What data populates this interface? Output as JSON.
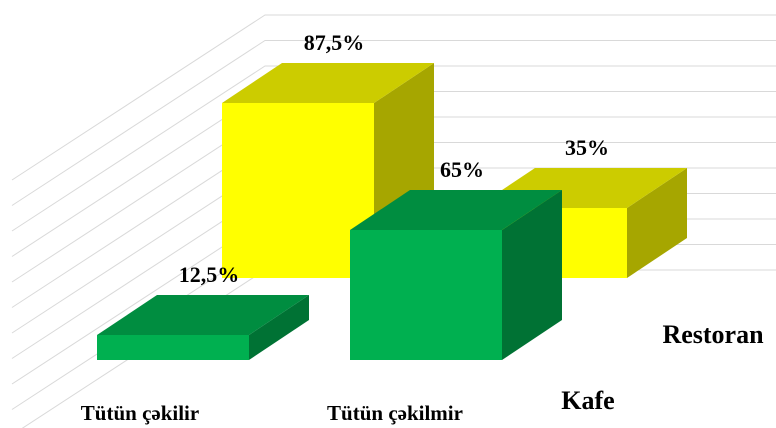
{
  "chart_data": {
    "type": "bar3d",
    "categories": [
      "Tütün çəkilir",
      "Tütün çəkilmir"
    ],
    "series": [
      {
        "name": "Kafe",
        "color": "#00b050",
        "values": [
          12.5,
          65
        ],
        "value_labels": [
          "12,5%",
          "65%"
        ]
      },
      {
        "name": "Restoran",
        "color": "#ffff00",
        "values": [
          87.5,
          35
        ],
        "value_labels": [
          "87,5%",
          "35%"
        ]
      }
    ],
    "ylim": [
      0,
      100
    ],
    "grid": true
  }
}
